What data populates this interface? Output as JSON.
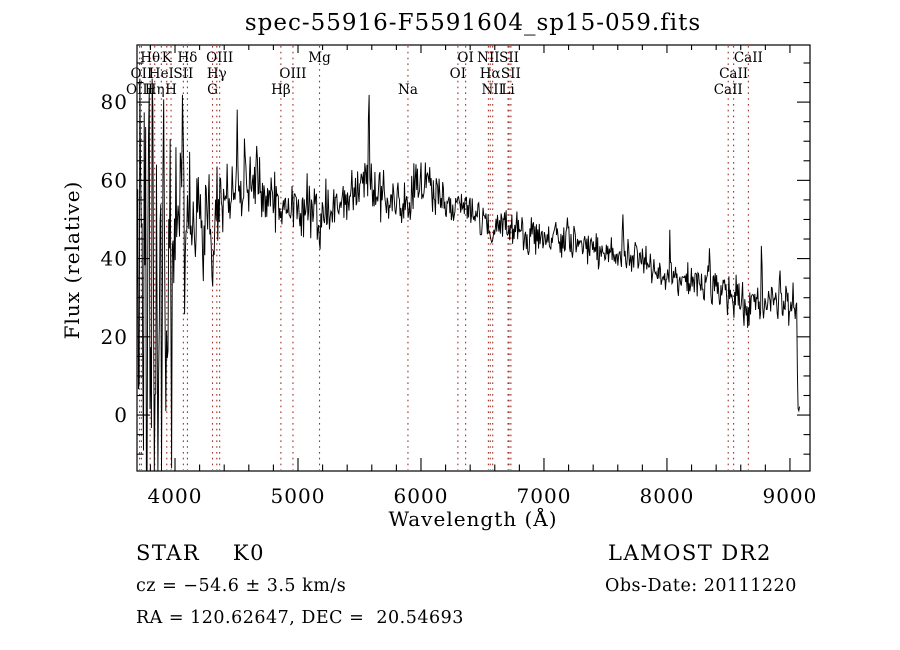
{
  "chart_data": {
    "type": "line",
    "title": "spec-55916-F5591604_sp15-059.fits",
    "xlabel": "Wavelength (Å)",
    "ylabel": "Flux (relative)",
    "xlim": [
      3691,
      9163
    ],
    "ylim": [
      -14.3,
      94.6
    ],
    "xticks": [
      4000,
      5000,
      6000,
      7000,
      8000,
      9000
    ],
    "x_minor_step": 200,
    "yticks": [
      0,
      20,
      40,
      60,
      80
    ],
    "y_minor_step": 5,
    "grid": false,
    "line_color": "#000000",
    "frame_color": "#000000",
    "marker_line_color": "#a03028",
    "spectral_lines": [
      {
        "label": "Hθ",
        "wavelength": 3798,
        "row": 1
      },
      {
        "label": "K",
        "wavelength": 3933,
        "row": 1
      },
      {
        "label": "Hδ",
        "wavelength": 4101,
        "row": 1
      },
      {
        "label": "OIII",
        "wavelength": 4363,
        "row": 1
      },
      {
        "label": "Mg",
        "wavelength": 5175,
        "row": 1
      },
      {
        "label": "OI",
        "wavelength": 6363,
        "row": 1
      },
      {
        "label": "NII",
        "wavelength": 6548,
        "row": 1
      },
      {
        "label": "SII",
        "wavelength": 6716,
        "row": 1
      },
      {
        "label": "CaII",
        "wavelength": 8662,
        "row": 1
      },
      {
        "label": "OII",
        "wavelength": 3727,
        "row": 2
      },
      {
        "label": "HeI",
        "wavelength": 3889,
        "row": 2
      },
      {
        "label": "SII",
        "wavelength": 4068,
        "row": 2
      },
      {
        "label": "Hγ",
        "wavelength": 4340,
        "row": 2
      },
      {
        "label": "OIII",
        "wavelength": 4959,
        "row": 2
      },
      {
        "label": "OI",
        "wavelength": 6300,
        "row": 2
      },
      {
        "label": "Hα",
        "wavelength": 6563,
        "row": 2
      },
      {
        "label": "SII",
        "wavelength": 6731,
        "row": 2
      },
      {
        "label": "CaII",
        "wavelength": 8542,
        "row": 2
      },
      {
        "label": "OIII",
        "wavelength": 3712,
        "row": 3
      },
      {
        "label": "Hη",
        "wavelength": 3835,
        "row": 3
      },
      {
        "label": "H",
        "wavelength": 3968,
        "row": 3
      },
      {
        "label": "G",
        "wavelength": 4305,
        "row": 3
      },
      {
        "label": "Hβ",
        "wavelength": 4861,
        "row": 3
      },
      {
        "label": "Na",
        "wavelength": 5894,
        "row": 3
      },
      {
        "label": "NII",
        "wavelength": 6583,
        "row": 3
      },
      {
        "label": "Li",
        "wavelength": 6708,
        "row": 3
      },
      {
        "label": "CaII",
        "wavelength": 8498,
        "row": 3
      }
    ],
    "marked_wavelengths": [
      3712,
      3727,
      3798,
      3835,
      3889,
      3933,
      3968,
      4068,
      4101,
      4305,
      4340,
      4363,
      4861,
      4959,
      5175,
      5894,
      6300,
      6363,
      6548,
      6563,
      6583,
      6708,
      6716,
      6731,
      8498,
      8542,
      8662
    ],
    "spectrum": {
      "seed": 20111220,
      "n_points": 920,
      "domain": [
        3691,
        9078
      ],
      "flux_clamp": [
        -14.3,
        86
      ],
      "continuum": [
        [
          3691,
          42
        ],
        [
          3720,
          45
        ],
        [
          3760,
          44
        ],
        [
          3800,
          46
        ],
        [
          3850,
          46
        ],
        [
          3900,
          48
        ],
        [
          3950,
          51
        ],
        [
          4000,
          53
        ],
        [
          4050,
          55
        ],
        [
          4120,
          50
        ],
        [
          4180,
          48
        ],
        [
          4250,
          50
        ],
        [
          4320,
          52
        ],
        [
          4400,
          56
        ],
        [
          4480,
          56
        ],
        [
          4560,
          58
        ],
        [
          4650,
          60
        ],
        [
          4730,
          57
        ],
        [
          4800,
          55
        ],
        [
          4870,
          53
        ],
        [
          4950,
          54
        ],
        [
          5050,
          53
        ],
        [
          5150,
          51
        ],
        [
          5250,
          52
        ],
        [
          5350,
          54
        ],
        [
          5450,
          56
        ],
        [
          5540,
          60
        ],
        [
          5600,
          58
        ],
        [
          5700,
          55
        ],
        [
          5800,
          54
        ],
        [
          5900,
          55
        ],
        [
          5980,
          58
        ],
        [
          6050,
          59
        ],
        [
          6150,
          56
        ],
        [
          6250,
          54
        ],
        [
          6350,
          53
        ],
        [
          6450,
          51
        ],
        [
          6550,
          49
        ],
        [
          6650,
          48
        ],
        [
          6800,
          47
        ],
        [
          6950,
          46
        ],
        [
          7100,
          45
        ],
        [
          7250,
          44
        ],
        [
          7400,
          43
        ],
        [
          7550,
          41
        ],
        [
          7700,
          40
        ],
        [
          7850,
          38
        ],
        [
          8000,
          36
        ],
        [
          8150,
          35
        ],
        [
          8300,
          34
        ],
        [
          8450,
          32
        ],
        [
          8600,
          30
        ],
        [
          8750,
          29
        ],
        [
          8900,
          28
        ],
        [
          9000,
          28
        ],
        [
          9040,
          27
        ],
        [
          9056,
          26
        ],
        [
          9062,
          3
        ],
        [
          9070,
          1
        ],
        [
          9078,
          2
        ]
      ],
      "noise_envelope": [
        [
          3691,
          16
        ],
        [
          3730,
          20
        ],
        [
          3780,
          24
        ],
        [
          3830,
          24
        ],
        [
          3880,
          20
        ],
        [
          3920,
          14
        ],
        [
          3960,
          12
        ],
        [
          4000,
          8
        ],
        [
          4080,
          7
        ],
        [
          4200,
          5.5
        ],
        [
          4400,
          4.5
        ],
        [
          4700,
          4
        ],
        [
          5000,
          4
        ],
        [
          5400,
          3.5
        ],
        [
          5800,
          3
        ],
        [
          6200,
          2.6
        ],
        [
          6600,
          2.2
        ],
        [
          7000,
          2
        ],
        [
          7400,
          2
        ],
        [
          7800,
          2.1
        ],
        [
          8200,
          2.3
        ],
        [
          8600,
          2.6
        ],
        [
          8900,
          3
        ],
        [
          9040,
          2.5
        ],
        [
          9078,
          0.5
        ]
      ],
      "absorption_dips": [
        [
          3933,
          20,
          6
        ],
        [
          3968,
          20,
          6
        ],
        [
          4101,
          9,
          5
        ],
        [
          4227,
          8,
          4
        ],
        [
          4305,
          10,
          12
        ],
        [
          4340,
          6,
          5
        ],
        [
          4861,
          6,
          6
        ],
        [
          5175,
          7,
          11
        ],
        [
          5894,
          6,
          7
        ],
        [
          6563,
          5,
          5
        ],
        [
          6870,
          4,
          9
        ],
        [
          8498,
          4,
          7
        ],
        [
          8542,
          5,
          8
        ],
        [
          8662,
          4,
          8
        ]
      ],
      "spikes": [
        [
          3705,
          -40,
          5
        ],
        [
          3714,
          25,
          4
        ],
        [
          3727,
          30,
          4
        ],
        [
          3741,
          -55,
          5
        ],
        [
          3756,
          22,
          4
        ],
        [
          3770,
          -58,
          5
        ],
        [
          3785,
          26,
          4
        ],
        [
          3800,
          -45,
          5
        ],
        [
          3818,
          28,
          4
        ],
        [
          3833,
          -55,
          5
        ],
        [
          3848,
          20,
          4
        ],
        [
          3862,
          -38,
          5
        ],
        [
          3875,
          24,
          4
        ],
        [
          3890,
          -50,
          5
        ],
        [
          3905,
          26,
          4
        ],
        [
          3920,
          -30,
          4
        ],
        [
          3940,
          -25,
          5
        ],
        [
          3955,
          18,
          4
        ],
        [
          3972,
          -28,
          5
        ],
        [
          3990,
          -18,
          4
        ],
        [
          4010,
          12,
          4
        ],
        [
          4046,
          24,
          4
        ],
        [
          4066,
          26,
          4
        ],
        [
          4080,
          -24,
          4
        ],
        [
          4120,
          8,
          4
        ],
        [
          4170,
          -10,
          4
        ],
        [
          4250,
          10,
          4
        ],
        [
          4340,
          14,
          4
        ],
        [
          4365,
          8,
          4
        ],
        [
          4390,
          -10,
          4
        ],
        [
          4504,
          15,
          4
        ],
        [
          4570,
          7,
          4
        ],
        [
          4668,
          9,
          4
        ],
        [
          5577,
          23,
          4
        ],
        [
          7190,
          5,
          4
        ],
        [
          7245,
          6,
          4
        ],
        [
          7640,
          10,
          4
        ],
        [
          7683,
          5,
          4
        ],
        [
          7750,
          4,
          4
        ],
        [
          8025,
          8,
          4
        ],
        [
          8230,
          4,
          4
        ],
        [
          8345,
          8,
          4
        ],
        [
          8505,
          6,
          4
        ],
        [
          8770,
          11,
          4
        ],
        [
          8830,
          6,
          4
        ],
        [
          8920,
          10,
          4
        ],
        [
          8970,
          5,
          4
        ]
      ]
    }
  },
  "annotations": {
    "class_label": "STAR    K0",
    "survey": "LAMOST DR2",
    "cz": "cz = −54.6 ± 3.5 km/s",
    "obs_date": "Obs-Date: 20111220",
    "coords": "RA = 120.62647, DEC =  20.54693"
  }
}
